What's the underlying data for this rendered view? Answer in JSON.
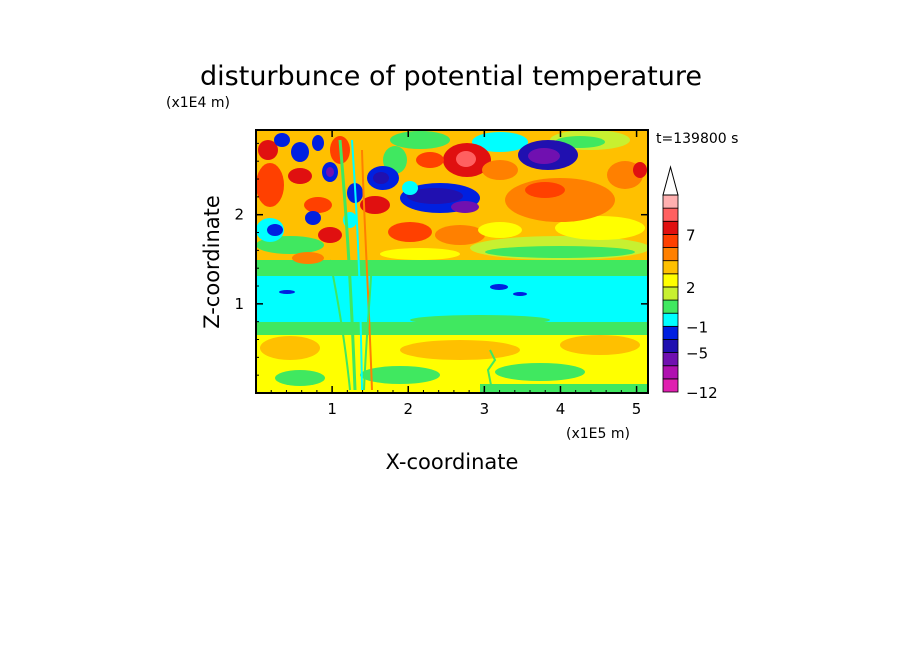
{
  "chart_data": {
    "type": "heatmap",
    "title": "disturbunce of potential temperature",
    "time_label": "t=139800 s",
    "xlabel": "X-coordinate",
    "ylabel": "Z-coordinate",
    "x_unit": "(x1E5 m)",
    "y_unit": "(x1E4 m)",
    "xlim": [
      0,
      5.15
    ],
    "ylim": [
      0,
      2.95
    ],
    "x_ticks": [
      "1",
      "2",
      "3",
      "4",
      "5"
    ],
    "y_ticks": [
      "1",
      "2"
    ],
    "colorbar": {
      "colors": [
        "#e020b0",
        "#b010b0",
        "#7010b0",
        "#2010b0",
        "#0020e0",
        "#00ffff",
        "#40e860",
        "#c8f030",
        "#ffff00",
        "#ffc000",
        "#ff8000",
        "#ff4000",
        "#e01010",
        "#ff6060",
        "#ffb0b0"
      ],
      "labels": [
        "-12",
        "-5",
        "-1",
        "2",
        "7"
      ]
    }
  }
}
